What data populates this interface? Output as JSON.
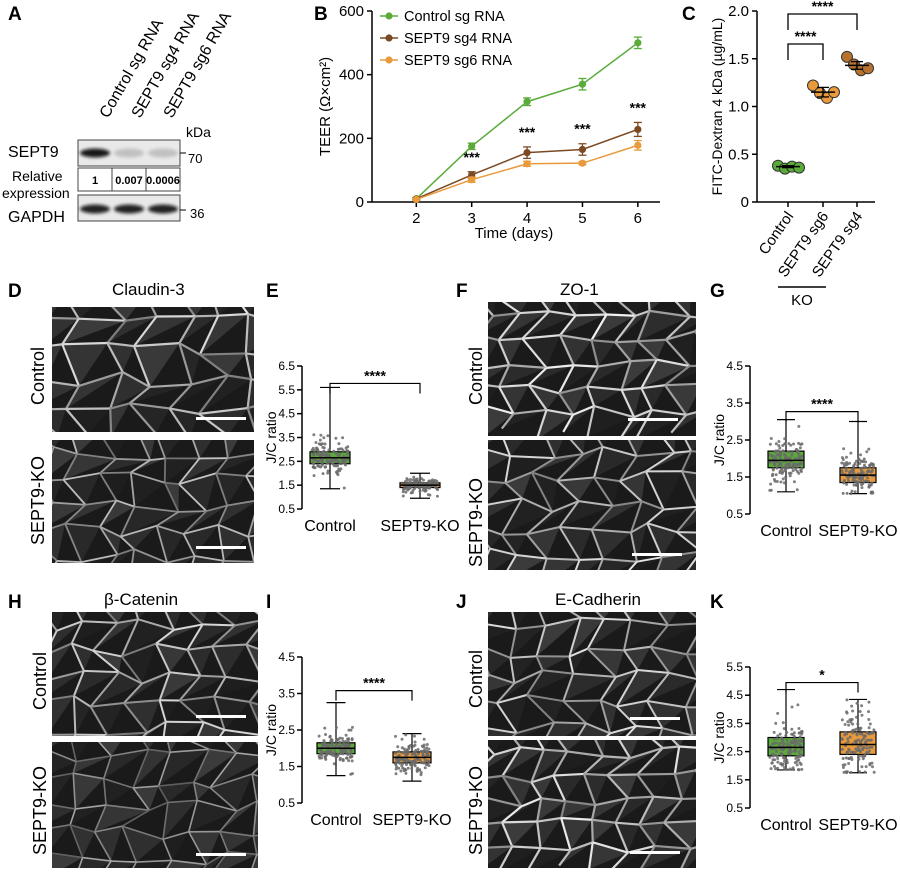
{
  "panels": {
    "A": "A",
    "B": "B",
    "C": "C",
    "D": "D",
    "E": "E",
    "F": "F",
    "G": "G",
    "H": "H",
    "I": "I",
    "J": "J",
    "K": "K"
  },
  "blot": {
    "lanes": [
      "Control sg RNA",
      "SEPT9 sg4 RNA",
      "SEPT9 sg6 RNA"
    ],
    "kda_label": "kDa",
    "sept9_label": "SEPT9",
    "rel_label_1": "Relative",
    "rel_label_2": "expression",
    "gapdh_label": "GAPDH",
    "rel_values": [
      "1",
      "0.007",
      "0.0006"
    ],
    "marker_70": "70",
    "marker_36": "36",
    "sept9_intensity": [
      1,
      0.007,
      0.0006
    ],
    "gapdh_intensity": [
      1,
      1,
      1
    ]
  },
  "micro": {
    "D_title": "Claudin-3",
    "F_title": "ZO-1",
    "H_title": "β-Catenin",
    "J_title": "E-Cadherin",
    "control": "Control",
    "ko": "SEPT9-KO"
  },
  "chart_data": [
    {
      "id": "B",
      "type": "line",
      "xlabel": "Time (days)",
      "ylabel": "TEER (Ω×cm²)",
      "x": [
        2,
        3,
        4,
        5,
        6
      ],
      "xlim": [
        1.2,
        6.4
      ],
      "ylim": [
        0,
        600
      ],
      "yticks": [
        0,
        200,
        400,
        600
      ],
      "legend": "top-left",
      "series": [
        {
          "name": "Control sg RNA",
          "color": "#5aab3a",
          "values": [
            10,
            175,
            315,
            370,
            500
          ],
          "err": [
            4,
            10,
            12,
            18,
            18
          ]
        },
        {
          "name": "SEPT9 sg4 RNA",
          "color": "#7b4a24",
          "values": [
            10,
            85,
            155,
            165,
            228
          ],
          "err": [
            3,
            10,
            18,
            18,
            22
          ]
        },
        {
          "name": "SEPT9 sg6 RNA",
          "color": "#e89a3c",
          "values": [
            8,
            70,
            120,
            122,
            178
          ],
          "err": [
            3,
            8,
            8,
            5,
            15
          ]
        }
      ],
      "annotations": [
        {
          "x": 3,
          "text": "***"
        },
        {
          "x": 4,
          "text": "***"
        },
        {
          "x": 5,
          "text": "***"
        },
        {
          "x": 6,
          "text": "***"
        }
      ]
    },
    {
      "id": "C",
      "type": "scatter",
      "ylabel": "FITC-Dextran 4 kDa (µg/mL)",
      "categories": [
        "Control",
        "SEPT9 sg6",
        "SEPT9 sg4"
      ],
      "group_label": "KO",
      "ylim": [
        0,
        2.0
      ],
      "yticks": [
        0,
        0.5,
        1.0,
        1.5,
        2.0
      ],
      "colors": [
        "#5aab3a",
        "#e89a3c",
        "#b7722f"
      ],
      "points": [
        [
          0.38,
          0.35,
          0.37,
          0.36
        ],
        [
          1.22,
          1.14,
          1.09,
          1.15
        ],
        [
          1.52,
          1.44,
          1.38,
          1.4
        ]
      ],
      "means": [
        0.37,
        1.15,
        1.43
      ],
      "sem": [
        0.01,
        0.05,
        0.04
      ],
      "significance": [
        {
          "from": 0,
          "to": 1,
          "text": "****"
        },
        {
          "from": 0,
          "to": 2,
          "text": "****"
        }
      ]
    },
    {
      "id": "E",
      "type": "box",
      "ylabel": "J/C ratio",
      "categories": [
        "Control",
        "SEPT9-KO"
      ],
      "ylim": [
        0.5,
        6.5
      ],
      "yticks": [
        0.5,
        1.5,
        2.5,
        3.5,
        4.5,
        5.5,
        6.5
      ],
      "boxes": [
        {
          "min": 1.35,
          "q1": 2.4,
          "median": 2.65,
          "q3": 2.9,
          "max": 5.6,
          "color": "#5aab3a"
        },
        {
          "min": 0.95,
          "q1": 1.4,
          "median": 1.5,
          "q3": 1.6,
          "max": 2.0,
          "color": "#e89a3c"
        }
      ],
      "significance": "****"
    },
    {
      "id": "G",
      "type": "box",
      "ylabel": "J/C ratio",
      "categories": [
        "Control",
        "SEPT9-KO"
      ],
      "ylim": [
        0.5,
        4.5
      ],
      "yticks": [
        0.5,
        1.5,
        2.5,
        3.5,
        4.5
      ],
      "boxes": [
        {
          "min": 1.1,
          "q1": 1.75,
          "median": 1.95,
          "q3": 2.2,
          "max": 3.05,
          "color": "#5aab3a"
        },
        {
          "min": 1.05,
          "q1": 1.35,
          "median": 1.55,
          "q3": 1.75,
          "max": 3.0,
          "color": "#e89a3c"
        }
      ],
      "significance": "****"
    },
    {
      "id": "I",
      "type": "box",
      "ylabel": "J/C ratio",
      "categories": [
        "Control",
        "SEPT9-KO"
      ],
      "ylim": [
        0.5,
        4.5
      ],
      "yticks": [
        0.5,
        1.5,
        2.5,
        3.5,
        4.5
      ],
      "boxes": [
        {
          "min": 1.25,
          "q1": 1.85,
          "median": 2.0,
          "q3": 2.15,
          "max": 3.25,
          "color": "#5aab3a"
        },
        {
          "min": 1.1,
          "q1": 1.6,
          "median": 1.75,
          "q3": 1.9,
          "max": 2.4,
          "color": "#e89a3c"
        }
      ],
      "significance": "****"
    },
    {
      "id": "K",
      "type": "box",
      "ylabel": "J/C ratio",
      "categories": [
        "Control",
        "SEPT9-KO"
      ],
      "ylim": [
        0.5,
        5.5
      ],
      "yticks": [
        0.5,
        1.5,
        2.5,
        3.5,
        4.5,
        5.5
      ],
      "boxes": [
        {
          "min": 1.85,
          "q1": 2.35,
          "median": 2.65,
          "q3": 3.0,
          "max": 4.7,
          "color": "#5aab3a"
        },
        {
          "min": 1.75,
          "q1": 2.4,
          "median": 2.75,
          "q3": 3.2,
          "max": 4.35,
          "color": "#e89a3c"
        }
      ],
      "significance": "*"
    }
  ]
}
